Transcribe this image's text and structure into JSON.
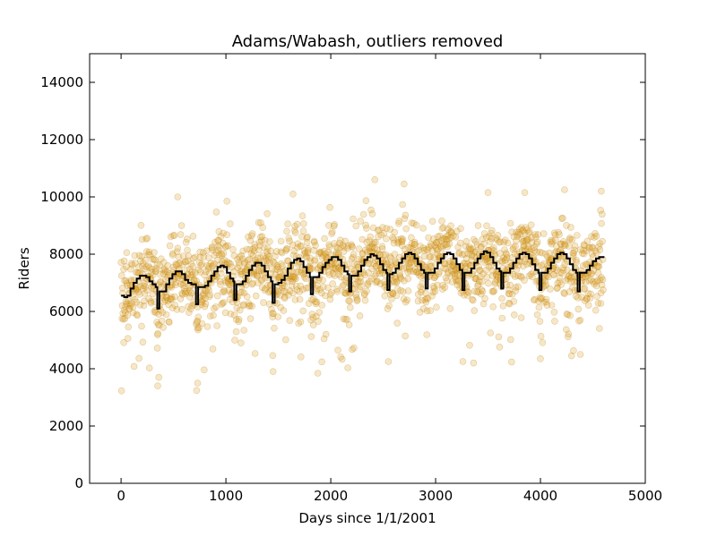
{
  "chart_data": {
    "type": "scatter",
    "title": "Adams/Wabash, outliers removed",
    "xlabel": "Days since 1/1/2001",
    "ylabel": "Riders",
    "xlim": [
      -300,
      5000
    ],
    "ylim": [
      0,
      15000
    ],
    "xticks": [
      0,
      1000,
      2000,
      3000,
      4000,
      5000
    ],
    "yticks": [
      0,
      2000,
      4000,
      6000,
      8000,
      10000,
      12000,
      14000
    ],
    "grid": false,
    "legend": "none",
    "series": [
      {
        "kind": "scatter",
        "color": "#e0a020",
        "edge_color": "#b07a10",
        "opacity": 0.25,
        "n_points_estimate": 1800,
        "x_range": [
          0,
          4600
        ],
        "typical_range": [
          6000,
          9000
        ],
        "outlier_low_examples": [
          [
            350,
            3400
          ],
          [
            360,
            3700
          ],
          [
            730,
            3500
          ],
          [
            1450,
            3900
          ],
          [
            2550,
            4250
          ],
          [
            3260,
            4250
          ],
          [
            4000,
            4350
          ],
          [
            4380,
            4500
          ]
        ],
        "outlier_high_examples": [
          [
            540,
            10000
          ],
          [
            1010,
            9850
          ],
          [
            1640,
            10100
          ],
          [
            2420,
            10600
          ],
          [
            2700,
            10450
          ],
          [
            3500,
            10150
          ],
          [
            3850,
            10150
          ],
          [
            4230,
            10250
          ],
          [
            4580,
            10200
          ]
        ]
      },
      {
        "kind": "step",
        "color": "#000000",
        "points": [
          [
            0,
            6550
          ],
          [
            30,
            6500
          ],
          [
            60,
            6550
          ],
          [
            90,
            6800
          ],
          [
            120,
            7000
          ],
          [
            150,
            7150
          ],
          [
            180,
            7250
          ],
          [
            210,
            7250
          ],
          [
            240,
            7200
          ],
          [
            270,
            7050
          ],
          [
            300,
            6950
          ],
          [
            330,
            6850
          ],
          [
            345,
            6100
          ],
          [
            365,
            6700
          ],
          [
            400,
            6700
          ],
          [
            430,
            6950
          ],
          [
            460,
            7150
          ],
          [
            490,
            7300
          ],
          [
            520,
            7400
          ],
          [
            550,
            7400
          ],
          [
            580,
            7300
          ],
          [
            610,
            7100
          ],
          [
            640,
            7000
          ],
          [
            670,
            6950
          ],
          [
            700,
            6950
          ],
          [
            715,
            6250
          ],
          [
            735,
            6850
          ],
          [
            770,
            6850
          ],
          [
            800,
            6900
          ],
          [
            830,
            7050
          ],
          [
            860,
            7250
          ],
          [
            890,
            7400
          ],
          [
            920,
            7550
          ],
          [
            950,
            7600
          ],
          [
            980,
            7550
          ],
          [
            1010,
            7350
          ],
          [
            1040,
            7150
          ],
          [
            1070,
            7050
          ],
          [
            1080,
            6400
          ],
          [
            1100,
            6950
          ],
          [
            1130,
            6950
          ],
          [
            1160,
            7050
          ],
          [
            1190,
            7250
          ],
          [
            1220,
            7450
          ],
          [
            1250,
            7600
          ],
          [
            1280,
            7700
          ],
          [
            1310,
            7700
          ],
          [
            1340,
            7600
          ],
          [
            1370,
            7400
          ],
          [
            1400,
            7200
          ],
          [
            1430,
            7050
          ],
          [
            1445,
            6300
          ],
          [
            1465,
            6950
          ],
          [
            1500,
            7000
          ],
          [
            1530,
            7100
          ],
          [
            1560,
            7250
          ],
          [
            1590,
            7500
          ],
          [
            1620,
            7700
          ],
          [
            1650,
            7800
          ],
          [
            1680,
            7850
          ],
          [
            1710,
            7750
          ],
          [
            1740,
            7550
          ],
          [
            1770,
            7350
          ],
          [
            1800,
            7200
          ],
          [
            1810,
            6600
          ],
          [
            1830,
            7200
          ],
          [
            1860,
            7200
          ],
          [
            1890,
            7350
          ],
          [
            1920,
            7550
          ],
          [
            1950,
            7700
          ],
          [
            1980,
            7800
          ],
          [
            2010,
            7900
          ],
          [
            2040,
            7900
          ],
          [
            2070,
            7800
          ],
          [
            2100,
            7600
          ],
          [
            2130,
            7400
          ],
          [
            2160,
            7300
          ],
          [
            2175,
            6700
          ],
          [
            2195,
            7250
          ],
          [
            2230,
            7250
          ],
          [
            2260,
            7400
          ],
          [
            2290,
            7600
          ],
          [
            2320,
            7800
          ],
          [
            2350,
            7900
          ],
          [
            2380,
            8000
          ],
          [
            2410,
            7950
          ],
          [
            2440,
            7850
          ],
          [
            2470,
            7650
          ],
          [
            2500,
            7450
          ],
          [
            2530,
            7350
          ],
          [
            2540,
            6750
          ],
          [
            2560,
            7300
          ],
          [
            2590,
            7350
          ],
          [
            2620,
            7500
          ],
          [
            2650,
            7700
          ],
          [
            2680,
            7850
          ],
          [
            2710,
            8000
          ],
          [
            2740,
            8050
          ],
          [
            2770,
            8000
          ],
          [
            2800,
            7850
          ],
          [
            2830,
            7650
          ],
          [
            2860,
            7450
          ],
          [
            2890,
            7350
          ],
          [
            2905,
            6800
          ],
          [
            2925,
            7350
          ],
          [
            2960,
            7350
          ],
          [
            2990,
            7500
          ],
          [
            3020,
            7700
          ],
          [
            3050,
            7850
          ],
          [
            3080,
            8000
          ],
          [
            3110,
            8050
          ],
          [
            3140,
            8000
          ],
          [
            3170,
            7850
          ],
          [
            3200,
            7650
          ],
          [
            3230,
            7450
          ],
          [
            3255,
            6750
          ],
          [
            3275,
            7350
          ],
          [
            3310,
            7350
          ],
          [
            3340,
            7500
          ],
          [
            3370,
            7700
          ],
          [
            3400,
            7850
          ],
          [
            3430,
            8000
          ],
          [
            3460,
            8100
          ],
          [
            3490,
            8050
          ],
          [
            3520,
            7900
          ],
          [
            3550,
            7700
          ],
          [
            3580,
            7500
          ],
          [
            3610,
            7400
          ],
          [
            3625,
            6800
          ],
          [
            3645,
            7350
          ],
          [
            3680,
            7350
          ],
          [
            3710,
            7500
          ],
          [
            3740,
            7700
          ],
          [
            3770,
            7850
          ],
          [
            3800,
            8000
          ],
          [
            3830,
            8050
          ],
          [
            3860,
            8000
          ],
          [
            3890,
            7850
          ],
          [
            3920,
            7650
          ],
          [
            3950,
            7450
          ],
          [
            3980,
            7350
          ],
          [
            3990,
            6750
          ],
          [
            4010,
            7350
          ],
          [
            4040,
            7350
          ],
          [
            4070,
            7500
          ],
          [
            4100,
            7700
          ],
          [
            4130,
            7850
          ],
          [
            4160,
            8000
          ],
          [
            4190,
            8050
          ],
          [
            4220,
            8000
          ],
          [
            4250,
            7850
          ],
          [
            4280,
            7650
          ],
          [
            4310,
            7450
          ],
          [
            4340,
            7350
          ],
          [
            4355,
            6700
          ],
          [
            4375,
            7350
          ],
          [
            4410,
            7350
          ],
          [
            4440,
            7450
          ],
          [
            4470,
            7600
          ],
          [
            4500,
            7750
          ],
          [
            4530,
            7850
          ],
          [
            4560,
            7900
          ],
          [
            4590,
            7900
          ]
        ]
      }
    ]
  }
}
